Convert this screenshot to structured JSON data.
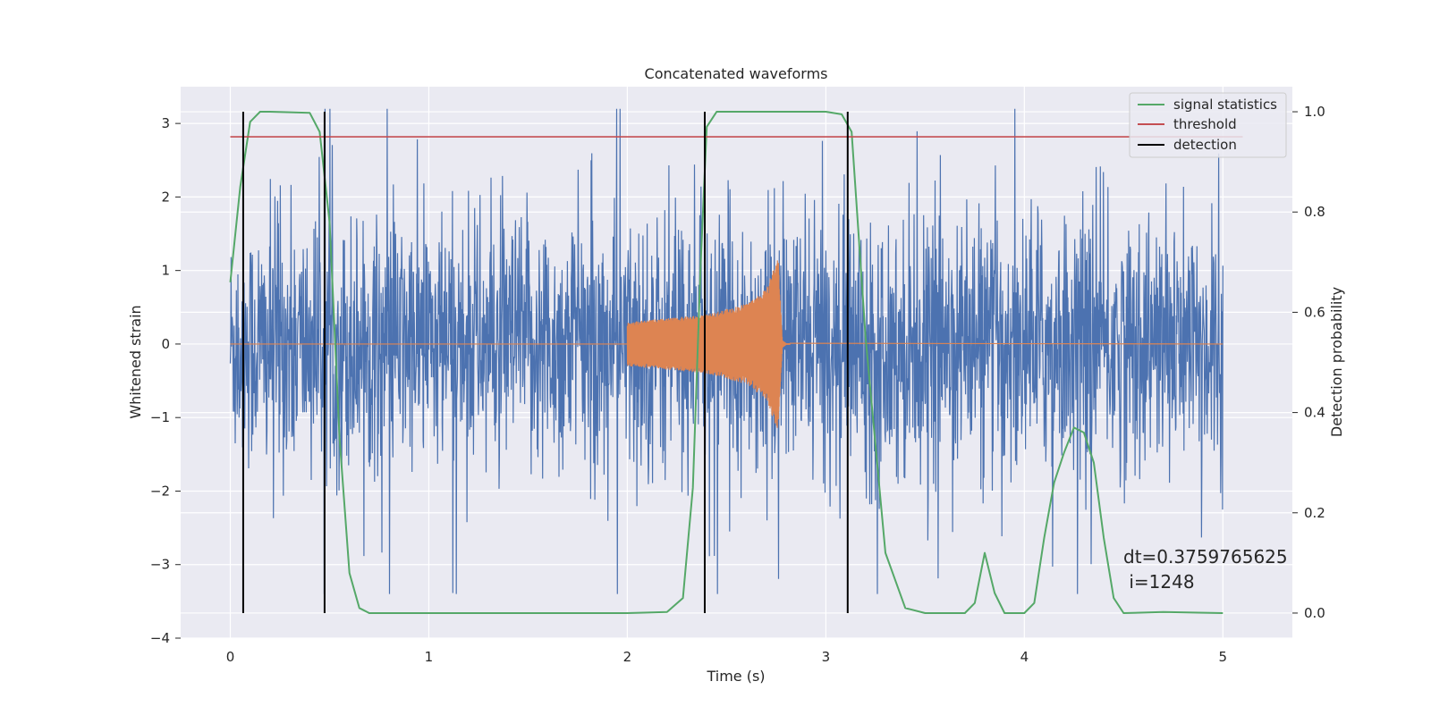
{
  "chart_data": {
    "type": "line",
    "title": "Concatenated waveforms",
    "xlabel": "Time (s)",
    "ylabel": "Whitened strain",
    "y2label": "Detection probability",
    "xlim": [
      -0.25,
      5.35
    ],
    "ylim": [
      -4,
      3.5
    ],
    "y2lim": [
      -0.05,
      1.05
    ],
    "xticks": [
      0,
      1,
      2,
      3,
      4,
      5
    ],
    "yticks": [
      -4,
      -3,
      -2,
      -1,
      0,
      1,
      2,
      3
    ],
    "y2ticks": [
      0.0,
      0.2,
      0.4,
      0.6,
      0.8,
      1.0
    ],
    "xtick_labels": [
      "0",
      "1",
      "2",
      "3",
      "4",
      "5"
    ],
    "ytick_labels": [
      "−4",
      "−3",
      "−2",
      "−1",
      "0",
      "1",
      "2",
      "3"
    ],
    "y2tick_labels": [
      "0.0",
      "0.2",
      "0.4",
      "0.6",
      "0.8",
      "1.0"
    ],
    "grid": true,
    "legend_position": "top-right",
    "series": [
      {
        "name": "",
        "axis": "left",
        "color": "#4c72b0",
        "kind": "noise",
        "x_range": [
          0,
          5
        ],
        "amplitude_envelope": [
          -3.4,
          3.2
        ]
      },
      {
        "name": "",
        "axis": "left",
        "color": "#dd8452",
        "kind": "chirp",
        "x": [
          0,
          2.0,
          2.0,
          2.4,
          2.6,
          2.7,
          2.76,
          2.78,
          2.8,
          5.0
        ],
        "y_envelope": [
          0,
          0.3,
          0.3,
          0.4,
          0.55,
          0.75,
          1.2,
          0.1,
          0.02,
          0
        ]
      },
      {
        "name": "signal statistics",
        "axis": "right",
        "color": "#55a868",
        "x": [
          0.0,
          0.05,
          0.1,
          0.15,
          0.2,
          0.4,
          0.45,
          0.5,
          0.55,
          0.6,
          0.65,
          0.7,
          1.0,
          2.0,
          2.2,
          2.28,
          2.33,
          2.37,
          2.4,
          2.45,
          2.5,
          3.0,
          3.08,
          3.13,
          3.2,
          3.3,
          3.4,
          3.5,
          3.7,
          3.75,
          3.8,
          3.85,
          3.9,
          4.0,
          4.05,
          4.1,
          4.15,
          4.2,
          4.25,
          4.3,
          4.35,
          4.4,
          4.45,
          4.5,
          4.7,
          5.0
        ],
        "y": [
          0.66,
          0.85,
          0.98,
          1.0,
          1.0,
          0.998,
          0.96,
          0.78,
          0.35,
          0.08,
          0.01,
          0.0,
          0.0,
          0.0,
          0.002,
          0.03,
          0.25,
          0.7,
          0.97,
          1.0,
          1.0,
          1.0,
          0.995,
          0.96,
          0.55,
          0.12,
          0.01,
          0.0,
          0.0,
          0.02,
          0.12,
          0.04,
          0.0,
          0.0,
          0.02,
          0.15,
          0.26,
          0.32,
          0.37,
          0.36,
          0.3,
          0.15,
          0.03,
          0.0,
          0.002,
          0.0
        ]
      },
      {
        "name": "threshold",
        "axis": "right",
        "color": "#c44e52",
        "x": [
          0,
          5.1
        ],
        "y": [
          0.95,
          0.95
        ]
      },
      {
        "name": "detection",
        "axis": "right",
        "color": "#000000",
        "vlines": [
          0.065,
          0.475,
          2.39,
          3.11
        ],
        "y_range": [
          0.0,
          1.0
        ]
      }
    ],
    "annotation": {
      "line1": "dt=0.3759765625",
      "line2": " i=1248"
    }
  }
}
